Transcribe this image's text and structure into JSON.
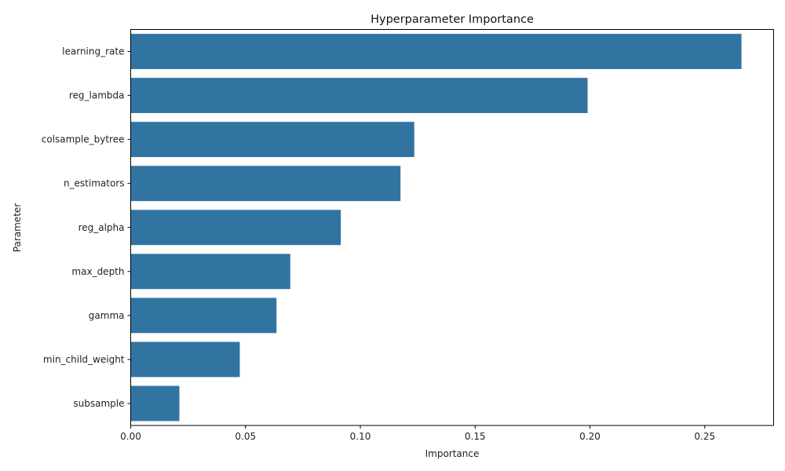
{
  "chart_data": {
    "type": "bar",
    "orientation": "horizontal",
    "title": "Hyperparameter Importance",
    "xlabel": "Importance",
    "ylabel": "Parameter",
    "categories": [
      "learning_rate",
      "reg_lambda",
      "colsample_bytree",
      "n_estimators",
      "reg_alpha",
      "max_depth",
      "gamma",
      "min_child_weight",
      "subsample"
    ],
    "values": [
      0.266,
      0.199,
      0.1235,
      0.1175,
      0.0915,
      0.0695,
      0.0635,
      0.0475,
      0.0212
    ],
    "xlim": [
      0,
      0.28
    ],
    "xticks": [
      0.0,
      0.05,
      0.1,
      0.15,
      0.2,
      0.25
    ],
    "xtick_labels": [
      "0.00",
      "0.05",
      "0.10",
      "0.15",
      "0.20",
      "0.25"
    ],
    "grid": false,
    "bar_color": "#3274a1"
  }
}
